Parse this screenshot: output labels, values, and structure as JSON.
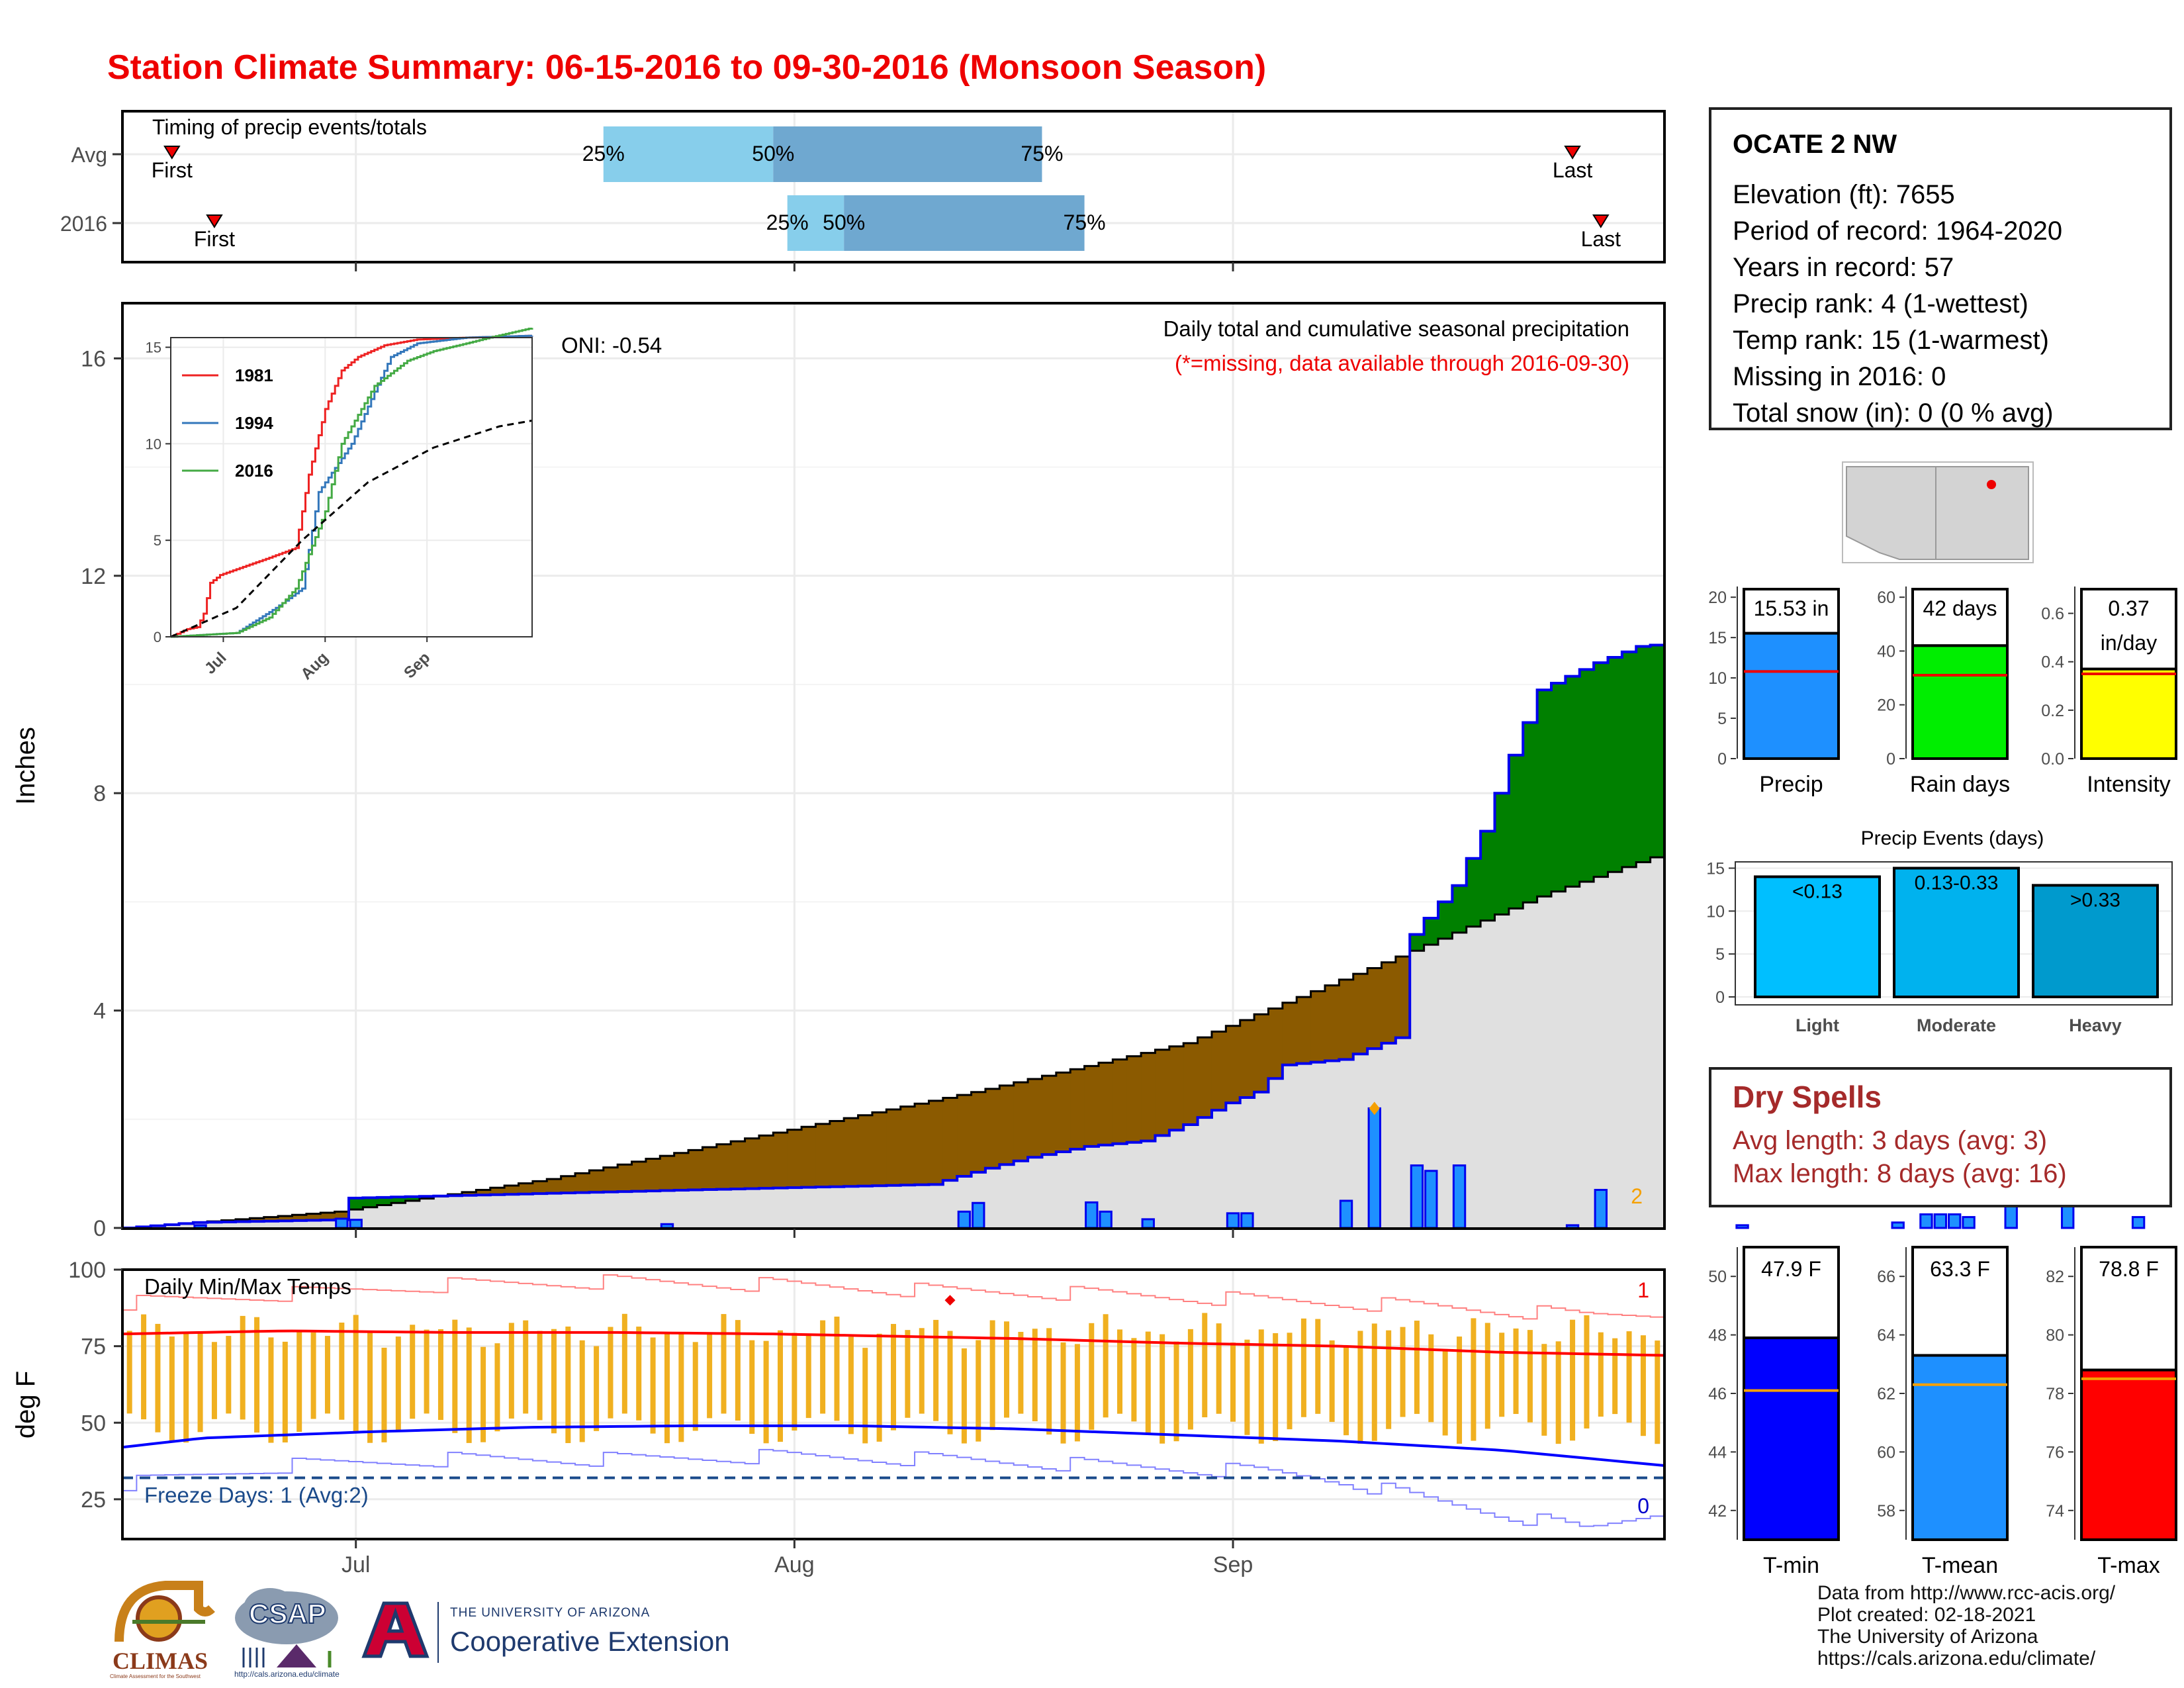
{
  "title": "Station Climate Summary: 06-15-2016 to 09-30-2016 (Monsoon Season)",
  "colors": {
    "title": "#ee0000",
    "cum_2016": "#008000",
    "cum_deficit": "#8b5a00",
    "avg_fill": "#e0e0e0",
    "daily_bar": "#1e90ff",
    "line_blue": "#0000ee",
    "precip_bar": "#1e90ff",
    "raindays_bar": "#00ee00",
    "intensity_bar": "#ffff00",
    "light": "#00bfff",
    "moderate": "#00b2ee",
    "heavy": "#009acd",
    "tmin": "#0000ff",
    "tmean": "#1e90ff",
    "tmax": "#ff0000",
    "temp_bar": "#f0b020",
    "dry": "#a52a2a"
  },
  "timing": {
    "title": "Timing of precip events/totals",
    "rows": [
      "Avg",
      "2016"
    ],
    "first_label": "First",
    "last_label": "Last",
    "avg": {
      "first": "06-18-2016",
      "p25": "07-19-2016",
      "p50": "07-31-2016",
      "p75": "08-19-2016",
      "last": "09-25-2016"
    },
    "y2016": {
      "first": "06-21-2016",
      "p25": "08-01-2016",
      "p50": "08-05-2016",
      "p75": "08-22-2016",
      "last": "09-27-2016"
    },
    "labels": {
      "p25": "25%",
      "p50": "50%",
      "p75": "75%"
    }
  },
  "main_chart": {
    "ylabel": "Inches",
    "yticks": [
      0,
      4,
      8,
      12,
      16
    ],
    "ylim": [
      0,
      17
    ],
    "xticks": [
      "Jul",
      "Aug",
      "Sep"
    ],
    "oni": "ONI: -0.54",
    "note1": "Daily total and cumulative seasonal precipitation",
    "note2": "(*=missing, data available through 2016-09-30)",
    "corner_count": "2"
  },
  "inset": {
    "yticks": [
      "0",
      "5",
      "10",
      "15"
    ],
    "xticks": [
      "Jul",
      "Aug",
      "Sep"
    ],
    "legend": [
      "1981",
      "1994",
      "2016"
    ],
    "legend_colors": [
      "#ee2222",
      "#3377bb",
      "#44aa44"
    ]
  },
  "chart_data": [
    {
      "type": "area",
      "title": "Daily total and cumulative seasonal precipitation",
      "ylabel": "Inches",
      "start_date": "06-15-2016",
      "cumulative_2016_knots": [
        [
          0,
          0
        ],
        [
          5,
          0.1
        ],
        [
          15,
          0.15
        ],
        [
          16,
          0.55
        ],
        [
          40,
          0.7
        ],
        [
          57,
          0.8
        ],
        [
          61,
          1.1
        ],
        [
          64,
          1.3
        ],
        [
          68,
          1.5
        ],
        [
          72,
          1.6
        ],
        [
          75,
          1.9
        ],
        [
          78,
          2.3
        ],
        [
          80,
          2.5
        ],
        [
          82,
          3.0
        ],
        [
          86,
          3.1
        ],
        [
          90,
          3.5
        ],
        [
          91,
          5.4
        ],
        [
          94,
          6.3
        ],
        [
          96,
          7.3
        ],
        [
          98,
          8.7
        ],
        [
          100,
          9.9
        ],
        [
          104,
          10.4
        ],
        [
          107,
          10.7
        ],
        [
          111,
          10.8
        ],
        [
          117,
          10.9
        ],
        [
          121,
          11.1
        ],
        [
          124,
          11.5
        ],
        [
          126,
          12.0
        ],
        [
          128,
          12.2
        ],
        [
          130,
          12.6
        ],
        [
          133,
          13.1
        ],
        [
          136,
          13.6
        ],
        [
          140,
          13.9
        ],
        [
          146,
          14.2
        ],
        [
          151,
          14.5
        ],
        [
          155,
          14.7
        ],
        [
          159,
          15.2
        ],
        [
          166,
          15.4
        ],
        [
          170,
          15.5
        ],
        [
          190,
          15.53
        ]
      ],
      "average_cumulative_knots": [
        [
          0,
          0
        ],
        [
          15,
          0.3
        ],
        [
          30,
          0.9
        ],
        [
          45,
          1.7
        ],
        [
          60,
          2.5
        ],
        [
          75,
          3.4
        ],
        [
          91,
          5.1
        ],
        [
          100,
          6.1
        ],
        [
          110,
          7.0
        ],
        [
          120,
          7.8
        ],
        [
          130,
          8.4
        ],
        [
          140,
          9.0
        ],
        [
          150,
          9.5
        ],
        [
          160,
          9.9
        ],
        [
          170,
          10.2
        ],
        [
          180,
          10.5
        ],
        [
          190,
          10.7
        ]
      ],
      "daily_precip": [
        [
          5,
          0.05
        ],
        [
          15,
          0.17
        ],
        [
          16,
          0.15
        ],
        [
          38,
          0.07
        ],
        [
          59,
          0.3
        ],
        [
          60,
          0.46
        ],
        [
          68,
          0.47
        ],
        [
          69,
          0.3
        ],
        [
          72,
          0.16
        ],
        [
          78,
          0.27
        ],
        [
          79,
          0.27
        ],
        [
          86,
          0.5
        ],
        [
          88,
          2.2
        ],
        [
          91,
          1.15
        ],
        [
          92,
          1.05
        ],
        [
          94,
          1.15
        ],
        [
          102,
          0.05
        ],
        [
          104,
          0.7
        ],
        [
          114,
          0.05
        ],
        [
          125,
          0.1
        ],
        [
          127,
          0.25
        ],
        [
          128,
          0.25
        ],
        [
          129,
          0.25
        ],
        [
          130,
          0.2
        ],
        [
          133,
          0.45
        ],
        [
          137,
          0.45
        ],
        [
          142,
          0.2
        ],
        [
          147,
          0.62
        ],
        [
          150,
          0.05
        ],
        [
          159,
          0.15
        ],
        [
          160,
          0.55
        ],
        [
          162,
          0.2
        ],
        [
          170,
          0.1
        ],
        [
          172,
          0.2
        ]
      ]
    },
    {
      "type": "line",
      "title": "Inset cumulative comparison",
      "ylim": [
        0,
        15.5
      ],
      "series": [
        {
          "name": "1981",
          "knots": [
            [
              0,
              0
            ],
            [
              5,
              0.4
            ],
            [
              8,
              0.5
            ],
            [
              10,
              1.2
            ],
            [
              12,
              2.8
            ],
            [
              15,
              3.2
            ],
            [
              20,
              3.5
            ],
            [
              30,
              4.1
            ],
            [
              38,
              4.6
            ],
            [
              42,
              8.4
            ],
            [
              47,
              11.8
            ],
            [
              52,
              13.8
            ],
            [
              57,
              14.5
            ],
            [
              65,
              15.1
            ],
            [
              75,
              15.4
            ],
            [
              90,
              15.5
            ],
            [
              110,
              15.6
            ]
          ]
        },
        {
          "name": "1994",
          "knots": [
            [
              0,
              0
            ],
            [
              20,
              0.2
            ],
            [
              32,
              1.5
            ],
            [
              40,
              2.5
            ],
            [
              45,
              7.5
            ],
            [
              55,
              10
            ],
            [
              62,
              12.7
            ],
            [
              67,
              14.5
            ],
            [
              75,
              15.2
            ],
            [
              90,
              15.5
            ],
            [
              110,
              15.6
            ]
          ]
        },
        {
          "name": "2016",
          "knots": [
            [
              0,
              0
            ],
            [
              20,
              0.2
            ],
            [
              30,
              1.0
            ],
            [
              38,
              2.5
            ],
            [
              47,
              6.5
            ],
            [
              52,
              10
            ],
            [
              62,
              13
            ],
            [
              72,
              14.3
            ],
            [
              80,
              14.8
            ],
            [
              90,
              15.2
            ],
            [
              97,
              15.5
            ],
            [
              110,
              16.0
            ]
          ]
        },
        {
          "name": "Average",
          "knots": [
            [
              0,
              0
            ],
            [
              20,
              1.5
            ],
            [
              40,
              5.0
            ],
            [
              60,
              8.0
            ],
            [
              80,
              9.8
            ],
            [
              100,
              10.9
            ],
            [
              110,
              11.2
            ]
          ]
        }
      ]
    },
    {
      "type": "bar",
      "categories": [
        "Precip",
        "Rain days",
        "Intensity"
      ],
      "values": [
        15.53,
        42,
        0.37
      ],
      "averages": [
        10.8,
        31,
        0.35
      ],
      "labels": [
        "15.53 in",
        "42 days",
        "0.37\nin/day"
      ],
      "ylims": [
        [
          0,
          21
        ],
        [
          0,
          63
        ],
        [
          0,
          0.7
        ]
      ],
      "yticks": [
        [
          "0",
          "5",
          "10",
          "15",
          "20"
        ],
        [
          "0",
          "20",
          "40",
          "60"
        ],
        [
          "0.0",
          "0.2",
          "0.4",
          "0.6"
        ]
      ]
    },
    {
      "type": "bar",
      "title": "Precip Events (days)",
      "categories": [
        "Light",
        "Moderate",
        "Heavy"
      ],
      "values": [
        14,
        15,
        13
      ],
      "labels": [
        "<0.13",
        "0.13-0.33",
        ">0.33"
      ],
      "ylim": [
        0,
        15.5
      ],
      "yticks": [
        "0",
        "5",
        "10",
        "15"
      ]
    },
    {
      "type": "line",
      "title": "Daily Min/Max Temps",
      "ylabel": "deg F",
      "yticks": [
        25,
        50,
        75,
        100
      ],
      "ylim": [
        12,
        100
      ],
      "freeze_line": 32,
      "freeze_label": "Freeze Days: 1 (Avg:2)",
      "count_hot": "1",
      "count_cold": "0",
      "avg_max_knots": [
        [
          0,
          79
        ],
        [
          20,
          80
        ],
        [
          40,
          79.5
        ],
        [
          60,
          79.5
        ],
        [
          80,
          79
        ],
        [
          90,
          78.5
        ],
        [
          110,
          77.5
        ],
        [
          130,
          76
        ],
        [
          150,
          75
        ],
        [
          170,
          73
        ],
        [
          190,
          72
        ]
      ],
      "avg_min_knots": [
        [
          0,
          42
        ],
        [
          10,
          45
        ],
        [
          20,
          46
        ],
        [
          30,
          47
        ],
        [
          50,
          48.5
        ],
        [
          70,
          49
        ],
        [
          90,
          49
        ],
        [
          110,
          48
        ],
        [
          130,
          46
        ],
        [
          150,
          44
        ],
        [
          170,
          41
        ],
        [
          190,
          36
        ]
      ],
      "record_high_knots": [
        [
          0,
          89
        ],
        [
          20,
          92
        ],
        [
          40,
          95
        ],
        [
          60,
          96
        ],
        [
          80,
          95
        ],
        [
          100,
          93
        ],
        [
          120,
          92
        ],
        [
          140,
          90
        ],
        [
          160,
          88
        ],
        [
          180,
          85
        ],
        [
          190,
          86
        ]
      ],
      "record_low_knots": [
        [
          0,
          30
        ],
        [
          20,
          36
        ],
        [
          40,
          38
        ],
        [
          60,
          38
        ],
        [
          80,
          39
        ],
        [
          100,
          38
        ],
        [
          120,
          36
        ],
        [
          140,
          34
        ],
        [
          150,
          31
        ],
        [
          160,
          25
        ],
        [
          170,
          20
        ],
        [
          180,
          15
        ],
        [
          190,
          22
        ]
      ],
      "obs_range": {
        "high_base": 80,
        "high_amp": 6,
        "low_base": 48,
        "low_amp": 5
      }
    },
    {
      "type": "bar",
      "categories": [
        "T-min",
        "T-mean",
        "T-max"
      ],
      "values": [
        47.9,
        63.3,
        78.8
      ],
      "averages": [
        46.1,
        62.3,
        78.5
      ],
      "labels": [
        "47.9 F",
        "63.3 F",
        "78.8 F"
      ],
      "ylims": [
        [
          41,
          51
        ],
        [
          57,
          67
        ],
        [
          73,
          83
        ]
      ],
      "yticks": [
        [
          "42",
          "44",
          "46",
          "48",
          "50"
        ],
        [
          "58",
          "60",
          "62",
          "64",
          "66"
        ],
        [
          "74",
          "76",
          "78",
          "80",
          "82"
        ]
      ]
    }
  ],
  "station": {
    "name": "OCATE 2 NW",
    "lines": [
      "Elevation (ft): 7655",
      "Period of record: 1964-2020",
      "Years in record: 57",
      "Precip rank: 4 (1-wettest)",
      "Temp rank: 15 (1-warmest)",
      "Missing in 2016: 0",
      "Total snow (in): 0 (0 % avg)"
    ]
  },
  "dry_spells": {
    "title": "Dry Spells",
    "avg_length": "Avg length: 3 days (avg: 3)",
    "max_length": "Max length: 8 days (avg: 16)"
  },
  "footer": {
    "lines": [
      "Data from http://www.rcc-acis.org/",
      "Plot created: 02-18-2021",
      "The University of Arizona",
      "https://cals.arizona.edu/climate/"
    ]
  },
  "logos": {
    "climas": "CLIMAS",
    "climas_sub": "Climate Assessment for the Southwest",
    "csap": "CSAP",
    "csap_url": "http://cals.arizona.edu/climate",
    "ua_small": "THE UNIVERSITY OF ARIZONA",
    "ua_big": "Cooperative Extension"
  }
}
